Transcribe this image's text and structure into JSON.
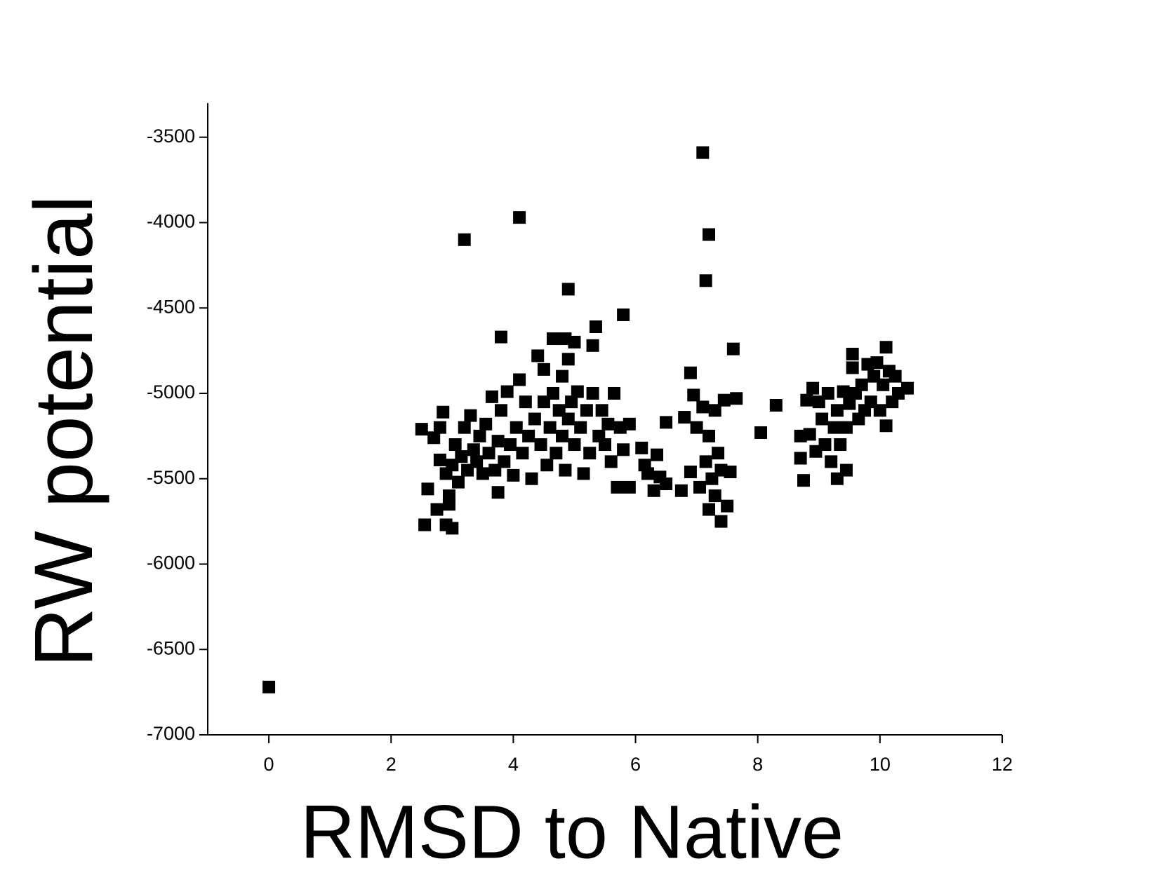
{
  "chart_data": {
    "type": "scatter",
    "x_label": "RMSD to Native",
    "y_label": "RW potential",
    "xlim": [
      -1,
      12
    ],
    "xticks": [
      0,
      2,
      4,
      6,
      8,
      10,
      12
    ],
    "ylim": [
      -7000,
      -3300
    ],
    "yticks": [
      -7000,
      -6500,
      -6000,
      -5500,
      -5000,
      -4500,
      -4000,
      -3500
    ],
    "color": "#000000",
    "x": [
      0,
      3.2,
      4.1,
      7.1,
      7.2,
      7.15,
      4.9,
      5.8,
      5.35,
      3.8,
      4.65,
      4.85,
      5.0,
      5.3,
      7.6,
      10.1,
      2.5,
      2.55,
      2.6,
      2.7,
      2.75,
      2.8,
      2.8,
      2.85,
      2.9,
      2.9,
      2.95,
      2.95,
      3.0,
      3.0,
      3.05,
      3.1,
      3.15,
      3.2,
      3.25,
      3.3,
      3.35,
      3.4,
      3.45,
      3.5,
      3.55,
      3.6,
      3.65,
      3.7,
      3.75,
      3.75,
      3.8,
      3.85,
      3.9,
      3.95,
      4.0,
      4.05,
      4.1,
      4.15,
      4.2,
      4.25,
      4.3,
      4.35,
      4.4,
      4.45,
      4.5,
      4.5,
      4.55,
      4.6,
      4.65,
      4.7,
      4.75,
      4.8,
      4.8,
      4.85,
      4.9,
      4.9,
      4.95,
      5.0,
      5.05,
      5.1,
      5.15,
      5.2,
      5.25,
      5.3,
      5.4,
      5.45,
      5.5,
      5.55,
      5.6,
      5.65,
      5.7,
      5.75,
      5.8,
      5.9,
      5.9,
      6.1,
      6.15,
      6.2,
      6.3,
      6.35,
      6.4,
      6.5,
      6.5,
      6.75,
      6.8,
      6.9,
      6.9,
      6.95,
      7.0,
      7.05,
      7.1,
      7.15,
      7.2,
      7.2,
      7.25,
      7.3,
      7.3,
      7.35,
      7.4,
      7.4,
      7.45,
      7.5,
      7.55,
      7.65,
      8.05,
      8.3,
      8.7,
      8.7,
      8.75,
      8.8,
      8.85,
      8.9,
      8.95,
      9.0,
      9.05,
      9.1,
      9.15,
      9.2,
      9.25,
      9.3,
      9.3,
      9.35,
      9.4,
      9.45,
      9.45,
      9.5,
      9.55,
      9.55,
      9.6,
      9.65,
      9.7,
      9.75,
      9.8,
      9.85,
      9.9,
      9.95,
      10.0,
      10.05,
      10.1,
      10.15,
      10.2,
      10.25,
      10.3,
      10.45
    ],
    "values": [
      -6720,
      -4100,
      -3970,
      -3590,
      -4070,
      -4340,
      -4390,
      -4540,
      -4610,
      -4670,
      -4680,
      -4680,
      -4700,
      -4720,
      -4740,
      -4730,
      -5210,
      -5770,
      -5560,
      -5260,
      -5680,
      -5200,
      -5390,
      -5110,
      -5770,
      -5470,
      -5650,
      -5600,
      -5790,
      -5420,
      -5300,
      -5520,
      -5370,
      -5200,
      -5450,
      -5130,
      -5330,
      -5400,
      -5250,
      -5470,
      -5180,
      -5350,
      -5020,
      -5450,
      -5580,
      -5280,
      -5100,
      -5400,
      -4990,
      -5300,
      -5480,
      -5200,
      -4920,
      -5350,
      -5050,
      -5250,
      -5500,
      -5150,
      -4780,
      -5300,
      -4860,
      -5050,
      -5420,
      -5200,
      -5000,
      -5350,
      -5100,
      -4900,
      -5250,
      -5450,
      -4800,
      -5150,
      -5050,
      -5300,
      -4990,
      -5200,
      -5470,
      -5100,
      -5350,
      -5000,
      -5250,
      -5100,
      -5300,
      -5180,
      -5400,
      -5000,
      -5550,
      -5200,
      -5330,
      -5550,
      -5180,
      -5320,
      -5420,
      -5470,
      -5570,
      -5360,
      -5490,
      -5170,
      -5530,
      -5570,
      -5140,
      -4880,
      -5460,
      -5010,
      -5200,
      -5550,
      -5080,
      -5400,
      -5680,
      -5250,
      -5500,
      -5100,
      -5600,
      -5350,
      -5750,
      -5450,
      -5040,
      -5660,
      -5460,
      -5030,
      -5230,
      -5070,
      -5250,
      -5380,
      -5510,
      -5040,
      -5240,
      -4970,
      -5340,
      -5050,
      -5150,
      -5300,
      -5000,
      -5400,
      -5200,
      -5100,
      -5500,
      -5300,
      -4990,
      -5450,
      -5200,
      -5060,
      -4850,
      -4770,
      -5000,
      -5150,
      -4950,
      -5100,
      -4830,
      -5050,
      -4900,
      -4820,
      -5100,
      -4950,
      -5190,
      -4870,
      -5050,
      -4900,
      -5000,
      -4970
    ]
  }
}
